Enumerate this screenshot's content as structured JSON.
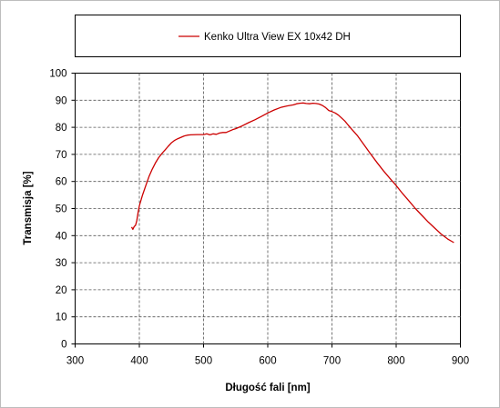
{
  "chart_data": {
    "type": "line",
    "xlabel": "Długość fali [nm]",
    "ylabel": "Transmisja [%]",
    "xlim": [
      300,
      900
    ],
    "ylim": [
      0,
      100
    ],
    "xticks": [
      300,
      400,
      500,
      600,
      700,
      800,
      900
    ],
    "yticks": [
      0,
      10,
      20,
      30,
      40,
      50,
      60,
      70,
      80,
      90,
      100
    ],
    "grid": true,
    "grid_style": "dashed",
    "legend_position": "top",
    "series": [
      {
        "name": "Kenko Ultra View EX 10x42 DH",
        "color": "#cc0000",
        "points": [
          [
            388,
            43.2
          ],
          [
            390,
            42.3
          ],
          [
            392,
            43.4
          ],
          [
            394,
            43.8
          ],
          [
            396,
            45.5
          ],
          [
            398,
            48.5
          ],
          [
            400,
            51.0
          ],
          [
            405,
            55.0
          ],
          [
            410,
            58.5
          ],
          [
            415,
            61.8
          ],
          [
            420,
            64.5
          ],
          [
            425,
            66.8
          ],
          [
            430,
            68.8
          ],
          [
            435,
            70.3
          ],
          [
            440,
            71.6
          ],
          [
            445,
            73.0
          ],
          [
            450,
            74.3
          ],
          [
            455,
            75.2
          ],
          [
            460,
            75.8
          ],
          [
            465,
            76.3
          ],
          [
            470,
            76.8
          ],
          [
            475,
            77.1
          ],
          [
            480,
            77.2
          ],
          [
            490,
            77.3
          ],
          [
            500,
            77.3
          ],
          [
            505,
            77.6
          ],
          [
            510,
            77.2
          ],
          [
            515,
            77.6
          ],
          [
            520,
            77.4
          ],
          [
            525,
            77.9
          ],
          [
            530,
            78.1
          ],
          [
            535,
            78.1
          ],
          [
            540,
            78.6
          ],
          [
            545,
            79.1
          ],
          [
            550,
            79.5
          ],
          [
            560,
            80.5
          ],
          [
            570,
            81.7
          ],
          [
            580,
            82.8
          ],
          [
            590,
            84.0
          ],
          [
            600,
            85.3
          ],
          [
            610,
            86.4
          ],
          [
            620,
            87.3
          ],
          [
            630,
            87.9
          ],
          [
            640,
            88.3
          ],
          [
            645,
            88.7
          ],
          [
            650,
            88.9
          ],
          [
            655,
            89.0
          ],
          [
            660,
            88.8
          ],
          [
            665,
            88.7
          ],
          [
            670,
            88.9
          ],
          [
            675,
            88.8
          ],
          [
            680,
            88.6
          ],
          [
            685,
            88.1
          ],
          [
            690,
            87.3
          ],
          [
            695,
            86.2
          ],
          [
            700,
            85.8
          ],
          [
            705,
            85.3
          ],
          [
            710,
            84.5
          ],
          [
            720,
            82.3
          ],
          [
            730,
            79.5
          ],
          [
            740,
            76.8
          ],
          [
            750,
            73.5
          ],
          [
            760,
            70.2
          ],
          [
            770,
            67.0
          ],
          [
            780,
            64.0
          ],
          [
            790,
            61.2
          ],
          [
            800,
            58.5
          ],
          [
            810,
            55.5
          ],
          [
            820,
            52.8
          ],
          [
            830,
            50.0
          ],
          [
            840,
            47.5
          ],
          [
            850,
            45.0
          ],
          [
            860,
            42.8
          ],
          [
            870,
            40.6
          ],
          [
            880,
            38.8
          ],
          [
            890,
            37.4
          ]
        ]
      }
    ]
  }
}
